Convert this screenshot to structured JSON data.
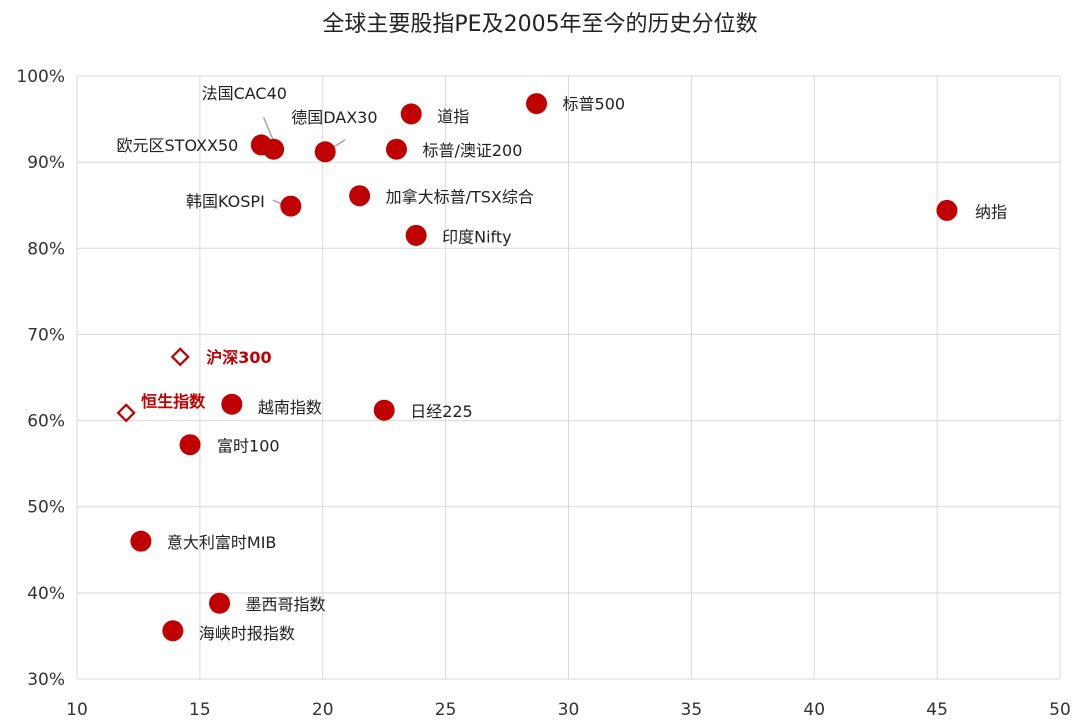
{
  "chart_data": {
    "type": "scatter",
    "title": "全球主要股指PE及2005年至今的历史分位数",
    "xlabel": "",
    "ylabel": "",
    "xlim": [
      10,
      50
    ],
    "ylim": [
      30,
      100
    ],
    "x_ticks": [
      "10",
      "15",
      "20",
      "25",
      "30",
      "35",
      "40",
      "45",
      "50"
    ],
    "y_ticks": [
      "30%",
      "40%",
      "50%",
      "60%",
      "70%",
      "80%",
      "90%",
      "100%"
    ],
    "grid": true,
    "colors": {
      "point": "#c00000",
      "highlight": "#c00000",
      "grid": "#d9d9d9",
      "leader": "#a6a6a6"
    },
    "points": [
      {
        "name": "标普500",
        "x": 28.7,
        "y": 96.8,
        "marker": "circle"
      },
      {
        "name": "道指",
        "x": 23.6,
        "y": 95.6,
        "marker": "circle"
      },
      {
        "name": "德国DAX30",
        "x": 20.1,
        "y": 91.2,
        "marker": "circle"
      },
      {
        "name": "法国CAC40",
        "x": 18.0,
        "y": 91.5,
        "marker": "circle"
      },
      {
        "name": "欧元区STOXX50",
        "x": 17.5,
        "y": 92.0,
        "marker": "circle"
      },
      {
        "name": "标普/澳证200",
        "x": 23.0,
        "y": 91.5,
        "marker": "circle"
      },
      {
        "name": "加拿大标普/TSX综合",
        "x": 21.5,
        "y": 86.1,
        "marker": "circle"
      },
      {
        "name": "韩国KOSPI",
        "x": 18.7,
        "y": 84.9,
        "marker": "circle"
      },
      {
        "name": "纳指",
        "x": 45.4,
        "y": 84.4,
        "marker": "circle"
      },
      {
        "name": "印度Nifty",
        "x": 23.8,
        "y": 81.5,
        "marker": "circle"
      },
      {
        "name": "沪深300",
        "x": 14.2,
        "y": 67.4,
        "marker": "diamond",
        "highlight": true
      },
      {
        "name": "恒生指数",
        "x": 12.0,
        "y": 60.9,
        "marker": "diamond",
        "highlight": true
      },
      {
        "name": "越南指数",
        "x": 16.3,
        "y": 61.9,
        "marker": "circle"
      },
      {
        "name": "日经225",
        "x": 22.5,
        "y": 61.2,
        "marker": "circle"
      },
      {
        "name": "富时100",
        "x": 14.6,
        "y": 57.2,
        "marker": "circle"
      },
      {
        "name": "意大利富时MIB",
        "x": 12.6,
        "y": 46.0,
        "marker": "circle"
      },
      {
        "name": "墨西哥指数",
        "x": 15.8,
        "y": 38.8,
        "marker": "circle"
      },
      {
        "name": "海峡时报指数",
        "x": 13.9,
        "y": 35.6,
        "marker": "circle"
      }
    ]
  }
}
